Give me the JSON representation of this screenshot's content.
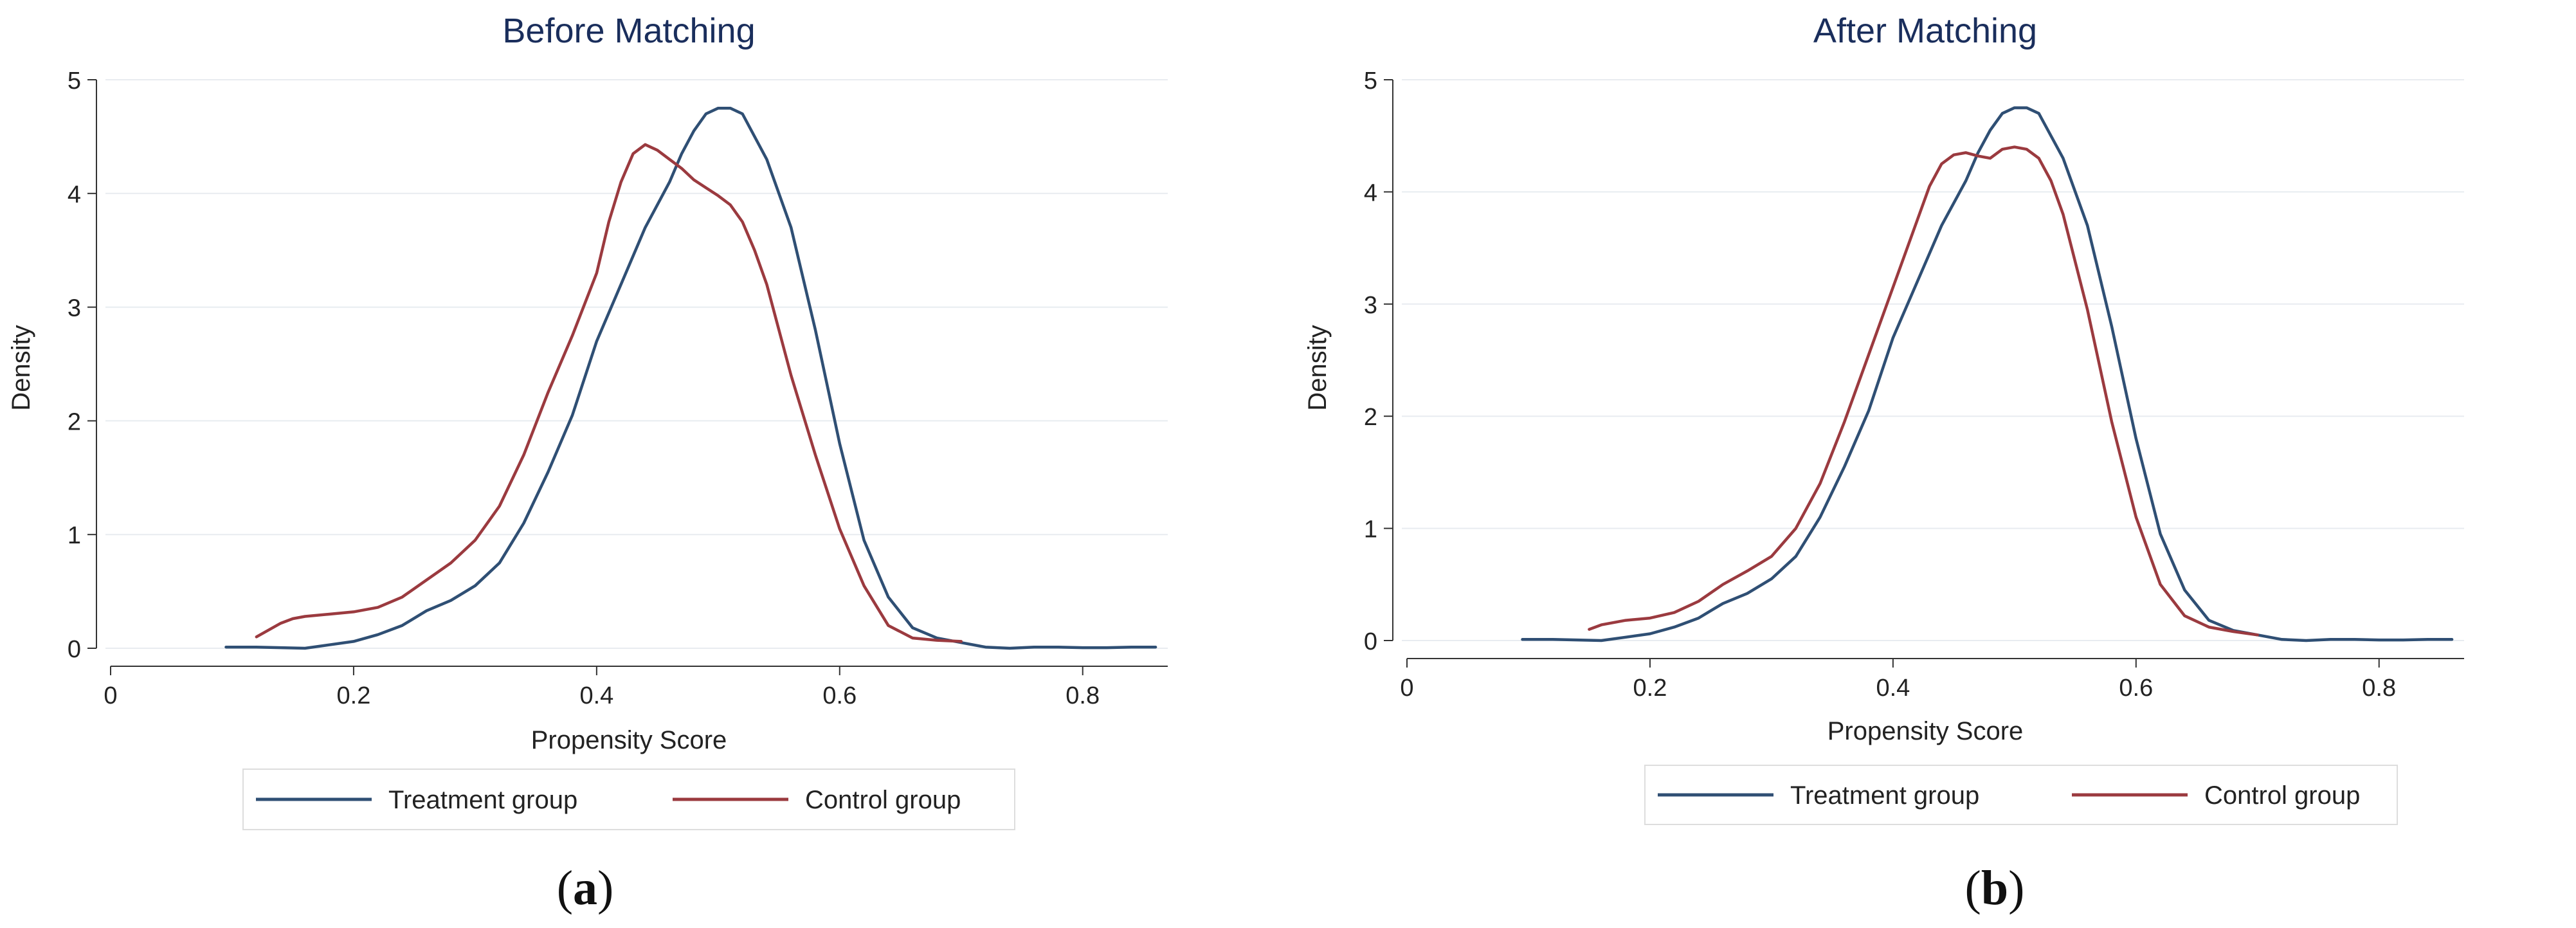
{
  "colors": {
    "treatment": "#2f4f74",
    "control": "#9b3a3f",
    "grid": "#e8ecf0",
    "axis": "#333333",
    "title": "#1a2e5c",
    "legend_border": "#dddddd"
  },
  "chart_data": [
    {
      "type": "line",
      "title": "Before Matching",
      "xlabel": "Propensity Score",
      "ylabel": "Density",
      "xlim": [
        0,
        0.87
      ],
      "ylim": [
        0,
        5
      ],
      "xticks": [
        "0",
        "0.2",
        "0.4",
        "0.6",
        "0.8"
      ],
      "yticks": [
        "0",
        "1",
        "2",
        "3",
        "4",
        "5"
      ],
      "grid": true,
      "legend_position": "bottom",
      "panel_label": {
        "open": "(",
        "letter": "a",
        "close": ")"
      },
      "series": [
        {
          "name": "Treatment group",
          "color_key": "treatment",
          "x": [
            0.095,
            0.12,
            0.14,
            0.16,
            0.18,
            0.2,
            0.22,
            0.24,
            0.26,
            0.28,
            0.3,
            0.32,
            0.34,
            0.36,
            0.38,
            0.4,
            0.42,
            0.44,
            0.46,
            0.47,
            0.48,
            0.49,
            0.5,
            0.51,
            0.52,
            0.54,
            0.56,
            0.58,
            0.6,
            0.62,
            0.64,
            0.66,
            0.68,
            0.7,
            0.72,
            0.74,
            0.76,
            0.78,
            0.8,
            0.82,
            0.84,
            0.86
          ],
          "y": [
            0.01,
            0.01,
            0.005,
            0.0,
            0.03,
            0.06,
            0.12,
            0.2,
            0.33,
            0.42,
            0.55,
            0.75,
            1.1,
            1.55,
            2.05,
            2.7,
            3.2,
            3.7,
            4.1,
            4.35,
            4.55,
            4.7,
            4.75,
            4.75,
            4.7,
            4.3,
            3.7,
            2.8,
            1.8,
            0.95,
            0.45,
            0.18,
            0.09,
            0.05,
            0.01,
            0.0,
            0.01,
            0.01,
            0.005,
            0.005,
            0.01,
            0.01
          ]
        },
        {
          "name": "Control group",
          "color_key": "control",
          "x": [
            0.12,
            0.13,
            0.14,
            0.15,
            0.16,
            0.18,
            0.2,
            0.22,
            0.24,
            0.26,
            0.28,
            0.3,
            0.32,
            0.34,
            0.36,
            0.38,
            0.4,
            0.41,
            0.42,
            0.43,
            0.44,
            0.45,
            0.46,
            0.47,
            0.48,
            0.49,
            0.5,
            0.51,
            0.52,
            0.53,
            0.54,
            0.56,
            0.58,
            0.6,
            0.62,
            0.64,
            0.66,
            0.68,
            0.7
          ],
          "y": [
            0.1,
            0.16,
            0.22,
            0.26,
            0.28,
            0.3,
            0.32,
            0.36,
            0.45,
            0.6,
            0.75,
            0.95,
            1.25,
            1.7,
            2.25,
            2.75,
            3.3,
            3.75,
            4.1,
            4.35,
            4.43,
            4.38,
            4.3,
            4.22,
            4.12,
            4.05,
            3.98,
            3.9,
            3.75,
            3.5,
            3.2,
            2.4,
            1.7,
            1.05,
            0.55,
            0.2,
            0.09,
            0.07,
            0.06
          ]
        }
      ]
    },
    {
      "type": "line",
      "title": "After Matching",
      "xlabel": "Propensity Score",
      "ylabel": "Density",
      "xlim": [
        0,
        0.87
      ],
      "ylim": [
        0,
        5
      ],
      "xticks": [
        "0",
        "0.2",
        "0.4",
        "0.6",
        "0.8"
      ],
      "yticks": [
        "0",
        "1",
        "2",
        "3",
        "4",
        "5"
      ],
      "grid": true,
      "legend_position": "bottom",
      "panel_label": {
        "open": "(",
        "letter": "b",
        "close": ")"
      },
      "series": [
        {
          "name": "Treatment group",
          "color_key": "treatment",
          "x": [
            0.095,
            0.12,
            0.14,
            0.16,
            0.18,
            0.2,
            0.22,
            0.24,
            0.26,
            0.28,
            0.3,
            0.32,
            0.34,
            0.36,
            0.38,
            0.4,
            0.42,
            0.44,
            0.46,
            0.47,
            0.48,
            0.49,
            0.5,
            0.51,
            0.52,
            0.54,
            0.56,
            0.58,
            0.6,
            0.62,
            0.64,
            0.66,
            0.68,
            0.7,
            0.72,
            0.74,
            0.76,
            0.78,
            0.8,
            0.82,
            0.84,
            0.86
          ],
          "y": [
            0.01,
            0.01,
            0.005,
            0.0,
            0.03,
            0.06,
            0.12,
            0.2,
            0.33,
            0.42,
            0.55,
            0.75,
            1.1,
            1.55,
            2.05,
            2.7,
            3.2,
            3.7,
            4.1,
            4.35,
            4.55,
            4.7,
            4.75,
            4.75,
            4.7,
            4.3,
            3.7,
            2.8,
            1.8,
            0.95,
            0.45,
            0.18,
            0.09,
            0.05,
            0.01,
            0.0,
            0.01,
            0.01,
            0.005,
            0.005,
            0.01,
            0.01
          ]
        },
        {
          "name": "Control group",
          "color_key": "control",
          "x": [
            0.15,
            0.16,
            0.18,
            0.2,
            0.22,
            0.24,
            0.26,
            0.28,
            0.3,
            0.32,
            0.34,
            0.36,
            0.38,
            0.4,
            0.42,
            0.43,
            0.44,
            0.45,
            0.46,
            0.47,
            0.48,
            0.49,
            0.5,
            0.51,
            0.52,
            0.53,
            0.54,
            0.56,
            0.58,
            0.6,
            0.62,
            0.64,
            0.66,
            0.68,
            0.7
          ],
          "y": [
            0.1,
            0.14,
            0.18,
            0.2,
            0.25,
            0.35,
            0.5,
            0.62,
            0.75,
            1.0,
            1.4,
            1.95,
            2.55,
            3.15,
            3.75,
            4.05,
            4.25,
            4.33,
            4.35,
            4.32,
            4.3,
            4.38,
            4.4,
            4.38,
            4.3,
            4.1,
            3.8,
            2.95,
            1.95,
            1.1,
            0.5,
            0.22,
            0.12,
            0.08,
            0.05
          ]
        }
      ]
    }
  ]
}
